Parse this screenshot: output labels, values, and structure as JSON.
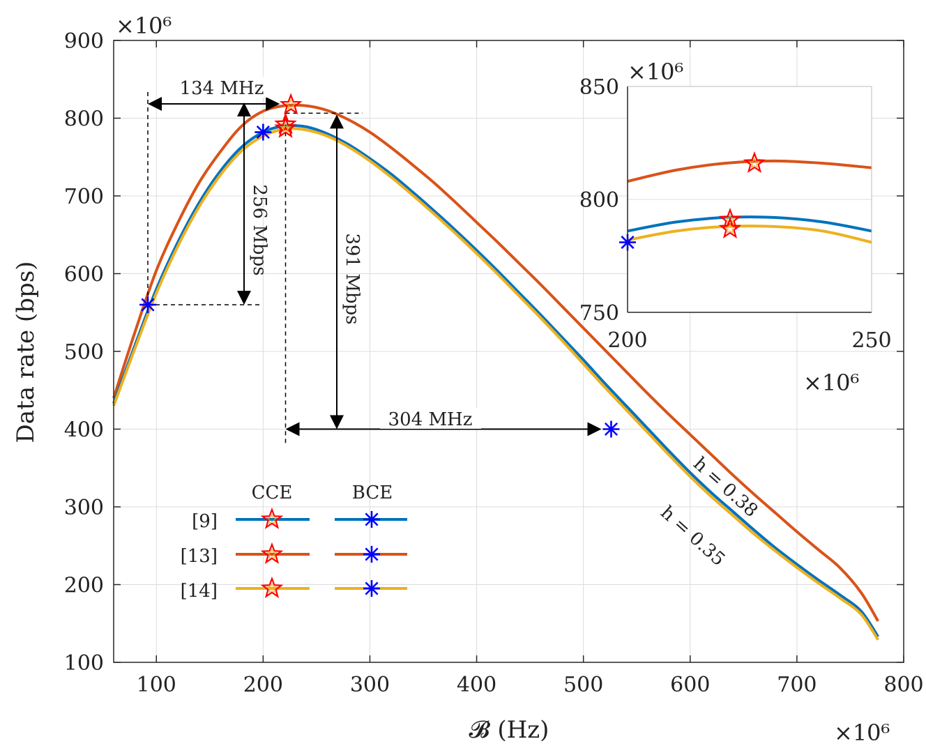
{
  "chart_data": {
    "type": "line",
    "title": "",
    "xlabel": "𝓑 (Hz)",
    "ylabel": "Data rate (bps)",
    "x_multiplier": "×10⁶",
    "y_multiplier": "×10⁶",
    "xlim": [
      60,
      800
    ],
    "ylim": [
      100,
      900
    ],
    "xticks": [
      100,
      200,
      300,
      400,
      500,
      600,
      700,
      800
    ],
    "yticks": [
      100,
      200,
      300,
      400,
      500,
      600,
      700,
      800,
      900
    ],
    "grid": true,
    "colors": {
      "ref9": "#0072BD",
      "ref13": "#D95319",
      "ref14": "#EDB120",
      "star": "#FF0000",
      "bce_marker": "#0000FF"
    },
    "series": [
      {
        "name": "[9]",
        "key": "ref9",
        "x": [
          60,
          80,
          100,
          120,
          140,
          160,
          180,
          200,
          220,
          240,
          260,
          280,
          300,
          320,
          340,
          360,
          380,
          400,
          420,
          440,
          460,
          480,
          500,
          520,
          540,
          560,
          580,
          600,
          620,
          640,
          660,
          680,
          700,
          720,
          740,
          760,
          776
        ],
        "y": [
          433,
          508,
          580,
          640,
          691,
          732,
          763,
          782,
          790,
          789,
          780,
          766,
          748,
          728,
          705,
          681,
          656,
          630,
          603,
          575,
          547,
          518,
          489,
          459,
          430,
          401,
          372,
          344,
          318,
          294,
          270,
          247,
          226,
          206,
          187,
          166,
          133
        ]
      },
      {
        "name": "[13]",
        "key": "ref13",
        "x": [
          60,
          80,
          100,
          120,
          140,
          160,
          180,
          200,
          220,
          240,
          260,
          280,
          300,
          320,
          340,
          360,
          380,
          400,
          420,
          440,
          460,
          480,
          500,
          520,
          540,
          560,
          580,
          600,
          620,
          640,
          660,
          680,
          700,
          720,
          740,
          760,
          776
        ],
        "y": [
          440,
          525,
          604,
          665,
          717,
          757,
          790,
          809,
          816,
          816,
          810,
          798,
          782,
          762,
          740,
          717,
          692,
          666,
          640,
          613,
          586,
          558,
          530,
          502,
          474,
          446,
          419,
          393,
          367,
          341,
          316,
          292,
          268,
          245,
          222,
          190,
          153
        ]
      },
      {
        "name": "[14]",
        "key": "ref14",
        "x": [
          60,
          80,
          100,
          120,
          140,
          160,
          180,
          200,
          220,
          240,
          260,
          280,
          300,
          320,
          340,
          360,
          380,
          400,
          420,
          440,
          460,
          480,
          500,
          520,
          540,
          560,
          580,
          600,
          620,
          640,
          660,
          680,
          700,
          720,
          740,
          760,
          776
        ],
        "y": [
          430,
          504,
          575,
          635,
          686,
          727,
          758,
          777,
          786,
          785,
          777,
          763,
          745,
          724,
          701,
          677,
          652,
          626,
          599,
          571,
          543,
          514,
          484,
          454,
          425,
          396,
          367,
          339,
          313,
          289,
          265,
          243,
          222,
          202,
          183,
          162,
          129
        ]
      }
    ],
    "cce_markers": [
      {
        "series": "ref13",
        "x": 226,
        "y": 817
      },
      {
        "series": "ref9",
        "x": 221,
        "y": 792
      },
      {
        "series": "ref14",
        "x": 221,
        "y": 787
      }
    ],
    "bce_markers": [
      {
        "x": 92,
        "y": 560
      },
      {
        "x": 200,
        "y": 782
      },
      {
        "x": 526,
        "y": 400
      }
    ],
    "annotations": {
      "bw1": "134 MHz",
      "rate1": "256 Mbps",
      "rate2": "391 Mbps",
      "bw2": "304 MHz",
      "h38": "h = 0.38",
      "h35": "h = 0.35"
    },
    "legend": {
      "col_cce": "CCE",
      "col_bce": "BCE",
      "rows": [
        {
          "label": "[9]",
          "key": "ref9"
        },
        {
          "label": "[13]",
          "key": "ref13"
        },
        {
          "label": "[14]",
          "key": "ref14"
        }
      ]
    },
    "inset": {
      "xlim": [
        200,
        250
      ],
      "ylim": [
        750,
        850
      ],
      "xticks": [
        200,
        250
      ],
      "yticks": [
        750,
        800,
        850
      ],
      "x_multiplier": "×10⁶",
      "y_multiplier": "×10⁶",
      "series": [
        {
          "key": "ref13",
          "x": [
            200,
            210,
            220,
            230,
            240,
            250
          ],
          "y": [
            808,
            813,
            816,
            817,
            816,
            814
          ]
        },
        {
          "key": "ref9",
          "x": [
            200,
            210,
            220,
            230,
            240,
            250
          ],
          "y": [
            786,
            790,
            792,
            792,
            790,
            786
          ]
        },
        {
          "key": "ref14",
          "x": [
            200,
            210,
            220,
            230,
            240,
            250
          ],
          "y": [
            782,
            786,
            788,
            788,
            786,
            781
          ]
        }
      ],
      "cce_markers": [
        {
          "x": 226,
          "y": 816
        },
        {
          "x": 221,
          "y": 791
        },
        {
          "x": 221,
          "y": 787
        }
      ],
      "bce_markers": [
        {
          "x": 200,
          "y": 781
        }
      ]
    }
  }
}
